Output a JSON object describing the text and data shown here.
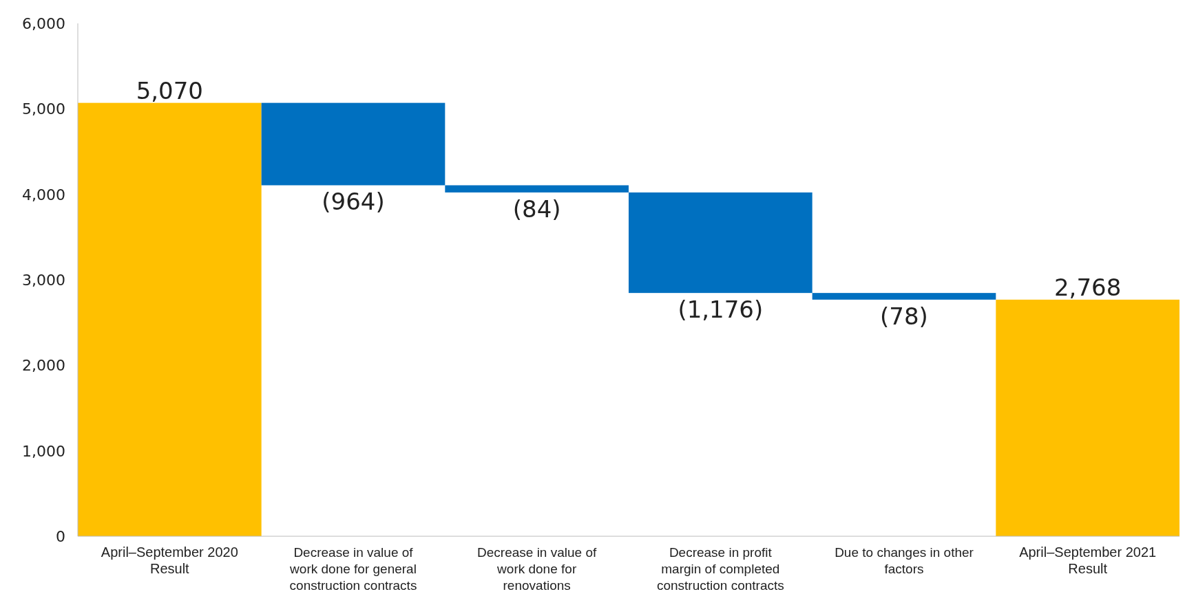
{
  "chart_data": {
    "type": "bar",
    "categories": [
      "April–September 2020 Result",
      "Decrease in value of work done for general construction contracts",
      "Decrease in value of work done for renovations",
      "Decrease in profit margin of completed construction contracts",
      "Due to changes in other factors",
      "April–September 2021 Result"
    ],
    "values": [
      5070,
      -964,
      -84,
      -1176,
      -78,
      2768
    ],
    "base": [
      0,
      5070,
      4106,
      4022,
      2846,
      0
    ],
    "colors": [
      "#ffc000",
      "#0070c0",
      "#0070c0",
      "#0070c0",
      "#0070c0",
      "#ffc000"
    ],
    "value_labels": [
      "5,070",
      "(964)",
      "(84)",
      "(1,176)",
      "(78)",
      "2,768"
    ],
    "ylim": [
      0,
      6000
    ],
    "yticks": [
      {
        "value": 0,
        "label": "0"
      },
      {
        "value": 1000,
        "label": "1,000"
      },
      {
        "value": 2000,
        "label": "2,000"
      },
      {
        "value": 3000,
        "label": "3,000"
      },
      {
        "value": 4000,
        "label": "4,000"
      },
      {
        "value": 5000,
        "label": "5,000"
      },
      {
        "value": 6000,
        "label": "6,000"
      }
    ]
  }
}
